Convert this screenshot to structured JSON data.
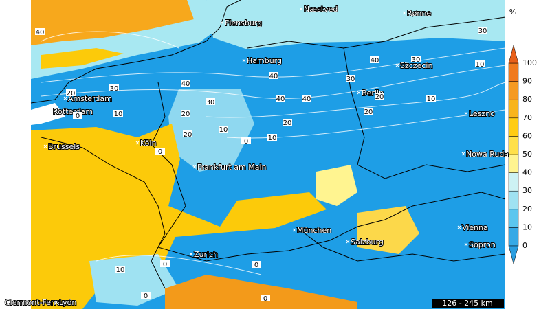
{
  "map": {
    "unit": "%",
    "scale_label": "126 - 245 km",
    "legend": {
      "levels": [
        0,
        10,
        20,
        30,
        40,
        50,
        60,
        70,
        80,
        90,
        100
      ],
      "band_colors": [
        "#36a9e6",
        "#5cc6ee",
        "#9fe2f2",
        "#cdf2f4",
        "#fff490",
        "#ffe04a",
        "#ffcc14",
        "#f8b41c",
        "#f59a22",
        "#f07a1e"
      ]
    },
    "cities": [
      "Næstved",
      "Rønne",
      "Flensburg",
      "Hamburg",
      "Szczecin",
      "Amsterdam",
      "Berlin",
      "Rotterdam",
      "Leszno",
      "Brussels",
      "Köln",
      "Nowa Ruda",
      "Frankfurt am Main",
      "München",
      "Vienna",
      "Salzburg",
      "Sopron",
      "Zurich",
      "Clermont-Ferrand",
      "Lyon"
    ],
    "contour_labels": [
      "40",
      "30",
      "30",
      "40",
      "10",
      "40",
      "30",
      "40",
      "30",
      "20",
      "30",
      "40",
      "40",
      "20",
      "10",
      "10",
      "20",
      "20",
      "20",
      "10",
      "20",
      "10",
      "0",
      "0",
      "0",
      "10",
      "0",
      "0",
      "0",
      "0"
    ]
  }
}
